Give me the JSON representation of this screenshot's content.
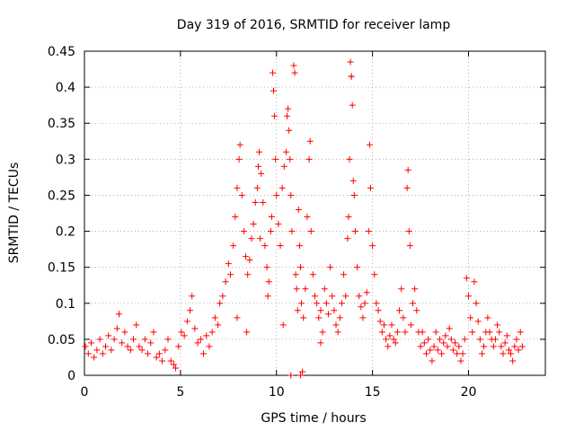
{
  "chart_data": {
    "type": "scatter",
    "title": "Day 319 of 2016, SRMTID for receiver lamp",
    "xlabel": "GPS time / hours",
    "ylabel": "SRMTID / TECUs",
    "xlim": [
      0,
      24
    ],
    "ylim": [
      0,
      0.45
    ],
    "xticks": [
      0,
      5,
      10,
      15,
      20
    ],
    "xtick_labels": [
      "0",
      "5",
      "10",
      "15",
      "20"
    ],
    "yticks": [
      0,
      0.05,
      0.1,
      0.15,
      0.2,
      0.25,
      0.3,
      0.35,
      0.4,
      0.45
    ],
    "ytick_labels": [
      "0",
      "0.05",
      "0.1",
      "0.15",
      "0.2",
      "0.25",
      "0.3",
      "0.35",
      "0.4",
      "0.45"
    ],
    "grid": true,
    "marker": "+",
    "series": [
      {
        "name": "SRMTID",
        "color": "#ff0000",
        "points": [
          [
            0.05,
            0.04
          ],
          [
            0.2,
            0.03
          ],
          [
            0.35,
            0.045
          ],
          [
            0.5,
            0.025
          ],
          [
            0.65,
            0.035
          ],
          [
            0.8,
            0.05
          ],
          [
            0.95,
            0.03
          ],
          [
            1.1,
            0.04
          ],
          [
            1.25,
            0.055
          ],
          [
            1.4,
            0.035
          ],
          [
            1.55,
            0.05
          ],
          [
            1.7,
            0.065
          ],
          [
            1.8,
            0.085
          ],
          [
            1.95,
            0.045
          ],
          [
            2.1,
            0.06
          ],
          [
            2.25,
            0.04
          ],
          [
            2.4,
            0.035
          ],
          [
            2.55,
            0.05
          ],
          [
            2.7,
            0.07
          ],
          [
            2.85,
            0.04
          ],
          [
            3.0,
            0.035
          ],
          [
            3.15,
            0.05
          ],
          [
            3.3,
            0.03
          ],
          [
            3.45,
            0.045
          ],
          [
            3.6,
            0.06
          ],
          [
            3.75,
            0.025
          ],
          [
            3.9,
            0.03
          ],
          [
            4.05,
            0.02
          ],
          [
            4.2,
            0.035
          ],
          [
            4.35,
            0.05
          ],
          [
            4.5,
            0.02
          ],
          [
            4.65,
            0.015
          ],
          [
            4.75,
            0.01
          ],
          [
            4.9,
            0.04
          ],
          [
            5.05,
            0.06
          ],
          [
            5.2,
            0.055
          ],
          [
            5.35,
            0.075
          ],
          [
            5.5,
            0.09
          ],
          [
            5.6,
            0.11
          ],
          [
            5.75,
            0.065
          ],
          [
            5.9,
            0.045
          ],
          [
            6.05,
            0.05
          ],
          [
            6.2,
            0.03
          ],
          [
            6.35,
            0.055
          ],
          [
            6.5,
            0.04
          ],
          [
            6.65,
            0.06
          ],
          [
            6.8,
            0.08
          ],
          [
            6.95,
            0.07
          ],
          [
            7.05,
            0.1
          ],
          [
            7.2,
            0.11
          ],
          [
            7.35,
            0.13
          ],
          [
            7.5,
            0.155
          ],
          [
            7.6,
            0.14
          ],
          [
            7.75,
            0.18
          ],
          [
            7.85,
            0.22
          ],
          [
            7.95,
            0.26
          ],
          [
            8.05,
            0.3
          ],
          [
            8.1,
            0.32
          ],
          [
            8.2,
            0.25
          ],
          [
            8.3,
            0.2
          ],
          [
            8.4,
            0.165
          ],
          [
            8.5,
            0.14
          ],
          [
            8.6,
            0.16
          ],
          [
            8.7,
            0.19
          ],
          [
            8.8,
            0.21
          ],
          [
            8.9,
            0.24
          ],
          [
            9.0,
            0.26
          ],
          [
            9.05,
            0.29
          ],
          [
            9.1,
            0.31
          ],
          [
            9.2,
            0.28
          ],
          [
            9.3,
            0.24
          ],
          [
            9.4,
            0.18
          ],
          [
            9.5,
            0.15
          ],
          [
            9.6,
            0.13
          ],
          [
            9.7,
            0.2
          ],
          [
            9.75,
            0.22
          ],
          [
            9.8,
            0.42
          ],
          [
            9.85,
            0.395
          ],
          [
            9.9,
            0.36
          ],
          [
            9.95,
            0.3
          ],
          [
            10.0,
            0.25
          ],
          [
            10.1,
            0.21
          ],
          [
            10.2,
            0.18
          ],
          [
            10.3,
            0.26
          ],
          [
            10.4,
            0.29
          ],
          [
            10.5,
            0.31
          ],
          [
            10.55,
            0.36
          ],
          [
            10.6,
            0.37
          ],
          [
            10.65,
            0.34
          ],
          [
            10.7,
            0.3
          ],
          [
            10.75,
            0.25
          ],
          [
            10.8,
            0.2
          ],
          [
            10.9,
            0.43
          ],
          [
            10.95,
            0.42
          ],
          [
            11.0,
            0.14
          ],
          [
            11.05,
            0.12
          ],
          [
            11.1,
            0.09
          ],
          [
            11.15,
            0.23
          ],
          [
            11.2,
            0.18
          ],
          [
            11.25,
            0.15
          ],
          [
            11.3,
            0.1
          ],
          [
            11.4,
            0.08
          ],
          [
            11.5,
            0.12
          ],
          [
            11.6,
            0.22
          ],
          [
            11.7,
            0.3
          ],
          [
            11.75,
            0.325
          ],
          [
            11.8,
            0.2
          ],
          [
            11.9,
            0.14
          ],
          [
            12.0,
            0.11
          ],
          [
            12.1,
            0.1
          ],
          [
            12.2,
            0.08
          ],
          [
            12.3,
            0.09
          ],
          [
            12.4,
            0.06
          ],
          [
            12.5,
            0.12
          ],
          [
            12.6,
            0.1
          ],
          [
            12.7,
            0.085
          ],
          [
            12.8,
            0.15
          ],
          [
            12.9,
            0.11
          ],
          [
            13.0,
            0.09
          ],
          [
            13.1,
            0.07
          ],
          [
            13.2,
            0.06
          ],
          [
            13.3,
            0.08
          ],
          [
            13.4,
            0.1
          ],
          [
            13.5,
            0.14
          ],
          [
            13.6,
            0.11
          ],
          [
            13.7,
            0.19
          ],
          [
            13.75,
            0.22
          ],
          [
            13.8,
            0.3
          ],
          [
            13.85,
            0.435
          ],
          [
            13.9,
            0.415
          ],
          [
            13.95,
            0.375
          ],
          [
            14.0,
            0.27
          ],
          [
            14.05,
            0.25
          ],
          [
            14.1,
            0.2
          ],
          [
            14.2,
            0.15
          ],
          [
            14.3,
            0.11
          ],
          [
            14.4,
            0.095
          ],
          [
            14.5,
            0.08
          ],
          [
            14.6,
            0.1
          ],
          [
            14.7,
            0.115
          ],
          [
            14.8,
            0.2
          ],
          [
            14.85,
            0.32
          ],
          [
            14.9,
            0.26
          ],
          [
            15.0,
            0.18
          ],
          [
            15.1,
            0.14
          ],
          [
            15.2,
            0.1
          ],
          [
            15.3,
            0.09
          ],
          [
            15.4,
            0.075
          ],
          [
            15.5,
            0.06
          ],
          [
            15.6,
            0.07
          ],
          [
            15.7,
            0.05
          ],
          [
            15.8,
            0.04
          ],
          [
            15.9,
            0.055
          ],
          [
            16.0,
            0.07
          ],
          [
            16.1,
            0.05
          ],
          [
            16.2,
            0.045
          ],
          [
            16.3,
            0.06
          ],
          [
            16.4,
            0.09
          ],
          [
            16.5,
            0.12
          ],
          [
            16.6,
            0.08
          ],
          [
            16.7,
            0.06
          ],
          [
            16.8,
            0.26
          ],
          [
            16.85,
            0.285
          ],
          [
            16.9,
            0.2
          ],
          [
            16.95,
            0.18
          ],
          [
            17.0,
            0.07
          ],
          [
            17.1,
            0.1
          ],
          [
            17.2,
            0.12
          ],
          [
            17.3,
            0.09
          ],
          [
            17.4,
            0.06
          ],
          [
            17.5,
            0.04
          ],
          [
            17.6,
            0.06
          ],
          [
            17.7,
            0.045
          ],
          [
            17.8,
            0.03
          ],
          [
            17.9,
            0.05
          ],
          [
            18.0,
            0.035
          ],
          [
            18.1,
            0.02
          ],
          [
            18.2,
            0.04
          ],
          [
            18.3,
            0.06
          ],
          [
            18.4,
            0.035
          ],
          [
            18.5,
            0.05
          ],
          [
            18.6,
            0.03
          ],
          [
            18.7,
            0.045
          ],
          [
            18.8,
            0.055
          ],
          [
            18.9,
            0.04
          ],
          [
            19.0,
            0.065
          ],
          [
            19.1,
            0.05
          ],
          [
            19.2,
            0.035
          ],
          [
            19.3,
            0.045
          ],
          [
            19.4,
            0.03
          ],
          [
            19.5,
            0.04
          ],
          [
            19.6,
            0.02
          ],
          [
            19.7,
            0.03
          ],
          [
            19.8,
            0.05
          ],
          [
            19.9,
            0.135
          ],
          [
            20.0,
            0.11
          ],
          [
            20.1,
            0.08
          ],
          [
            20.2,
            0.06
          ],
          [
            20.3,
            0.13
          ],
          [
            20.4,
            0.1
          ],
          [
            20.5,
            0.075
          ],
          [
            20.6,
            0.05
          ],
          [
            20.7,
            0.03
          ],
          [
            20.8,
            0.04
          ],
          [
            20.9,
            0.06
          ],
          [
            21.0,
            0.08
          ],
          [
            21.1,
            0.06
          ],
          [
            21.2,
            0.05
          ],
          [
            21.3,
            0.04
          ],
          [
            21.4,
            0.05
          ],
          [
            21.5,
            0.07
          ],
          [
            21.6,
            0.06
          ],
          [
            21.7,
            0.04
          ],
          [
            21.8,
            0.03
          ],
          [
            21.9,
            0.045
          ],
          [
            22.0,
            0.055
          ],
          [
            22.1,
            0.035
          ],
          [
            22.2,
            0.03
          ],
          [
            22.3,
            0.02
          ],
          [
            22.4,
            0.04
          ],
          [
            22.5,
            0.05
          ],
          [
            22.6,
            0.035
          ],
          [
            22.7,
            0.06
          ],
          [
            22.8,
            0.04
          ],
          [
            10.75,
            0.0
          ],
          [
            11.25,
            0.0
          ],
          [
            11.35,
            0.005
          ],
          [
            12.3,
            0.045
          ],
          [
            13.9,
            0.415
          ],
          [
            9.15,
            0.19
          ],
          [
            8.45,
            0.06
          ],
          [
            7.95,
            0.08
          ],
          [
            10.35,
            0.07
          ],
          [
            9.55,
            0.11
          ]
        ]
      }
    ]
  }
}
